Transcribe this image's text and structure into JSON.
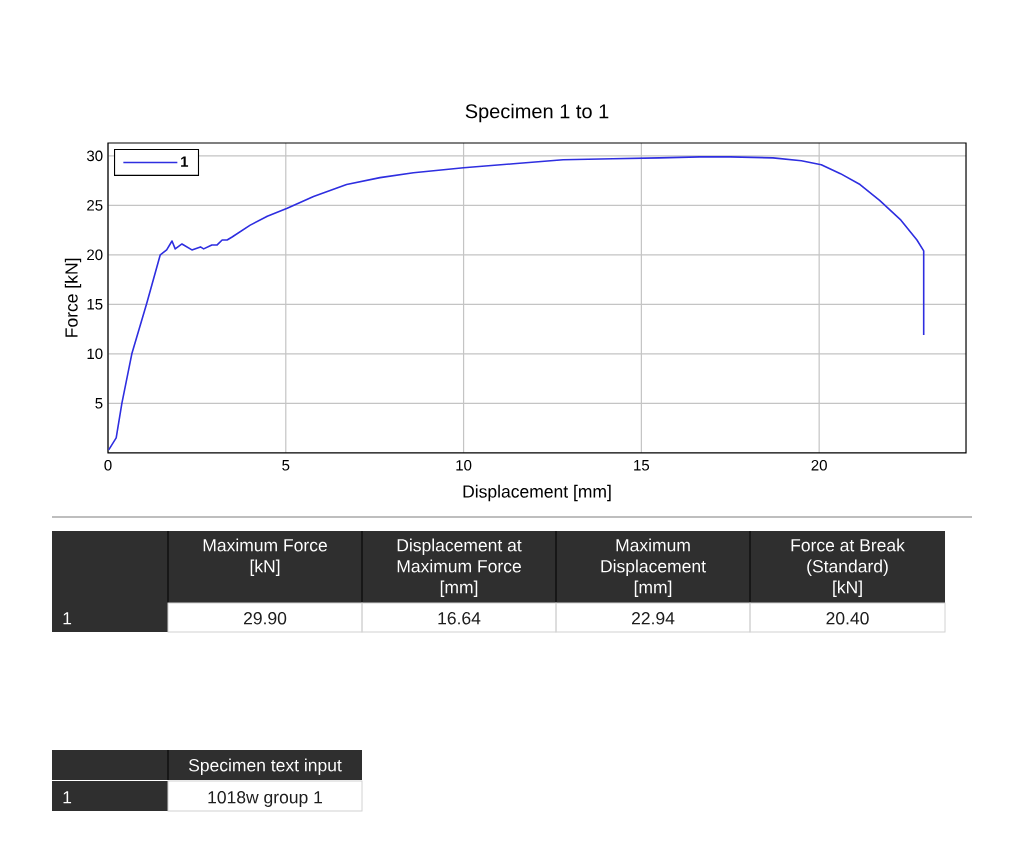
{
  "chart_data": {
    "type": "line",
    "title": "Specimen 1 to 1",
    "xlabel": "Displacement [mm]",
    "ylabel": "Force [kN]",
    "x": [
      0.02,
      0.23,
      0.39,
      0.67,
      1.09,
      1.47,
      1.65,
      1.8,
      1.89,
      2.08,
      2.36,
      2.6,
      2.69,
      2.92,
      3.07,
      3.21,
      3.35,
      3.49,
      4.0,
      4.48,
      5.04,
      5.78,
      6.71,
      7.65,
      8.59,
      10.0,
      11.4,
      12.8,
      14.2,
      15.5,
      16.64,
      17.5,
      18.7,
      19.5,
      20.06,
      20.6,
      21.15,
      21.7,
      22.3,
      22.75,
      22.94,
      22.94
    ],
    "series": [
      {
        "name": "1",
        "color": "#2e2ee0",
        "values": [
          0.3,
          1.5,
          5.0,
          10.0,
          15.1,
          20.0,
          20.5,
          21.4,
          20.6,
          21.1,
          20.5,
          20.8,
          20.6,
          21.0,
          21.0,
          21.5,
          21.5,
          21.8,
          23.0,
          23.9,
          24.7,
          25.9,
          27.1,
          27.8,
          28.3,
          28.8,
          29.2,
          29.6,
          29.7,
          29.8,
          29.9,
          29.9,
          29.8,
          29.5,
          29.1,
          28.2,
          27.1,
          25.5,
          23.5,
          21.5,
          20.4,
          11.9
        ]
      }
    ],
    "xlim": [
      0,
      24.13
    ],
    "ylim": [
      0,
      31.3
    ],
    "xticks": [
      0,
      5,
      10,
      15,
      20
    ],
    "yticks": [
      5,
      10,
      15,
      20,
      25,
      30
    ],
    "grid": true,
    "legend": "top left",
    "annotations": [
      "Maximum Force",
      "[kN]",
      "Displacement at",
      "Maximum Force",
      "[mm]",
      "Maximum",
      "Displacement",
      "[mm]",
      "Force at Break",
      "(Standard)",
      "[kN]",
      "1",
      "29.90",
      "16.64",
      "22.94",
      "20.40",
      "Specimen text input",
      "1",
      "1018w group 1"
    ]
  }
}
